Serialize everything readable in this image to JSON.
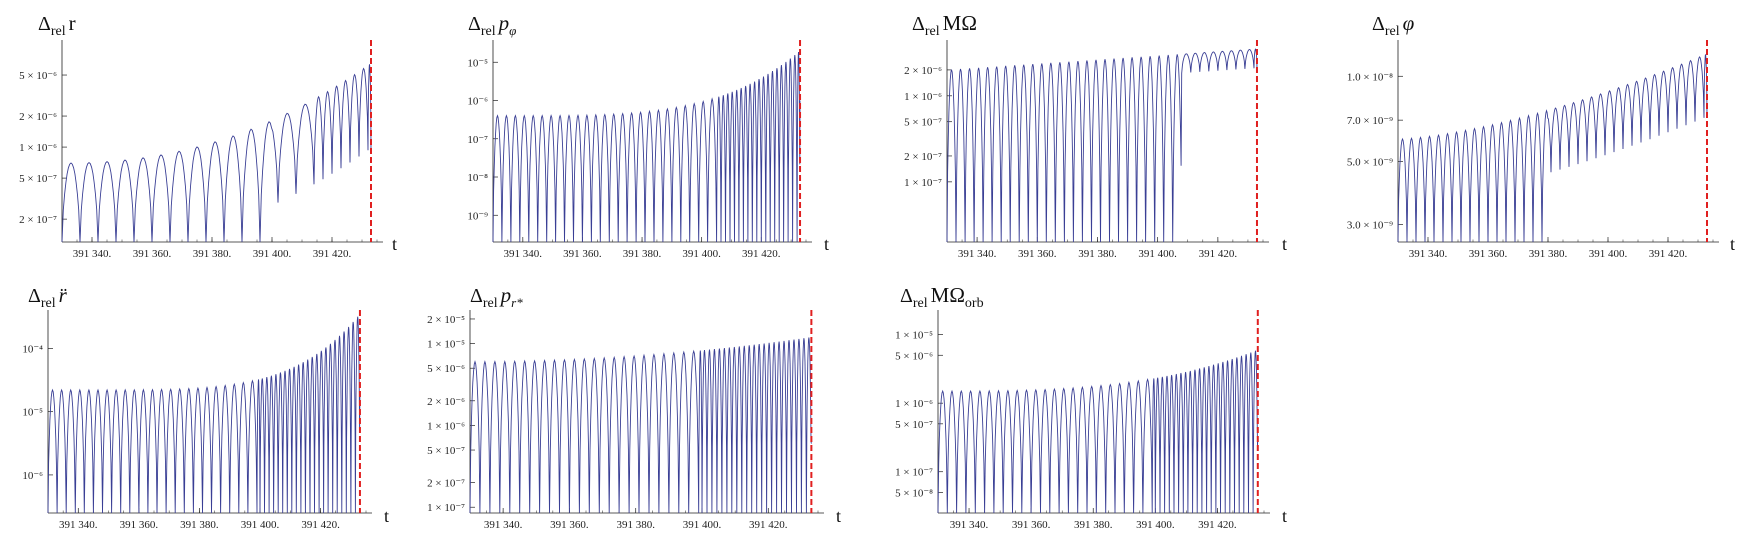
{
  "chart_data": [
    {
      "type": "line",
      "title": "Δrel r",
      "title_main": "Δ",
      "title_sub": "rel",
      "title_sym": "r",
      "title_sym_italic": false,
      "xlabel": "t",
      "ylabel": "",
      "yscale": "log",
      "xlim": [
        391330,
        391435
      ],
      "ylim": [
        1.2e-07,
        1e-05
      ],
      "xticks": [
        391340,
        391360,
        391380,
        391400,
        391420
      ],
      "xticklabels": [
        "391 340.",
        "391 360.",
        "391 380.",
        "391 400.",
        "391 420."
      ],
      "yticks": [
        2e-07,
        5e-07,
        1e-06,
        2e-06,
        5e-06
      ],
      "yticklabels": [
        "2 × 10⁻⁷",
        "5 × 10⁻⁷",
        "1 × 10⁻⁶",
        "2 × 10⁻⁶",
        "5 × 10⁻⁶"
      ],
      "series": [
        {
          "color": "#3a3f95",
          "form": "dips",
          "env_start": 7e-07,
          "env_end": 6.5e-06,
          "env_shape": 2.2,
          "floor": 1.2e-07,
          "periods": [
            [
              391330,
              391414,
              6.0
            ],
            [
              391414,
              391433,
              3.0
            ]
          ],
          "floor_end": 391400,
          "dip_depth_late": 0.15
        }
      ],
      "vline": {
        "x": 391433,
        "color": "#e02020",
        "style": "dashed"
      }
    },
    {
      "type": "line",
      "title": "Δrel pφ",
      "title_main": "Δ",
      "title_sub": "rel",
      "title_sym": "p",
      "title_sym_italic": true,
      "title_symsub": "φ",
      "xlabel": "t",
      "ylabel": "",
      "yscale": "log",
      "xlim": [
        391330,
        391435
      ],
      "ylim": [
        2e-10,
        3e-05
      ],
      "xticks": [
        391340,
        391360,
        391380,
        391400,
        391420
      ],
      "xticklabels": [
        "391 340.",
        "391 360.",
        "391 380.",
        "391 400.",
        "391 420."
      ],
      "yticks": [
        1e-09,
        1e-08,
        1e-07,
        1e-06,
        1e-05
      ],
      "yticklabels": [
        "10⁻⁹",
        "10⁻⁸",
        "10⁻⁷",
        "10⁻⁶",
        "10⁻⁵"
      ],
      "series": [
        {
          "color": "#3a3f95",
          "form": "dips",
          "env_start": 4e-07,
          "env_end": 2e-05,
          "env_shape": 4.0,
          "floor": 2e-10,
          "periods": [
            [
              391330,
              391405,
              3.0
            ],
            [
              391405,
              391433,
              1.5
            ]
          ],
          "floor_end": 391433,
          "dip_depth_late": 0.05
        }
      ],
      "vline": {
        "x": 391433,
        "color": "#e02020",
        "style": "dashed"
      }
    },
    {
      "type": "line",
      "title": "Δrel MΩ",
      "title_main": "Δ",
      "title_sub": "rel",
      "title_sym": "MΩ",
      "title_sym_italic": false,
      "xlabel": "t",
      "ylabel": "",
      "yscale": "log",
      "xlim": [
        391330,
        391435
      ],
      "ylim": [
        2e-08,
        4e-06
      ],
      "xticks": [
        391340,
        391360,
        391380,
        391400,
        391420
      ],
      "xticklabels": [
        "391 340.",
        "391 360.",
        "391 380.",
        "391 400.",
        "391 420."
      ],
      "yticks": [
        1e-07,
        2e-07,
        5e-07,
        1e-06,
        2e-06
      ],
      "yticklabels": [
        "1 × 10⁻⁷",
        "2 × 10⁻⁷",
        "5 × 10⁻⁷",
        "1 × 10⁻⁶",
        "2 × 10⁻⁶"
      ],
      "series": [
        {
          "color": "#3a3f95",
          "form": "dips",
          "env_start": 2e-06,
          "env_end": 3.5e-06,
          "env_shape": 1.0,
          "floor": 2e-08,
          "periods": [
            [
              391330,
              391433,
              3.0
            ]
          ],
          "floor_end": 391408,
          "dip_depth_late": 0.6
        }
      ],
      "vline": {
        "x": 391433,
        "color": "#e02020",
        "style": "dashed"
      }
    },
    {
      "type": "line",
      "title": "Δrel φ",
      "title_main": "Δ",
      "title_sub": "rel",
      "title_sym": "φ",
      "title_sym_italic": true,
      "xlabel": "t",
      "ylabel": "",
      "yscale": "log",
      "xlim": [
        391330,
        391435
      ],
      "ylim": [
        2.6e-09,
        1.3e-08
      ],
      "xticks": [
        391340,
        391360,
        391380,
        391400,
        391420
      ],
      "xticklabels": [
        "391 340.",
        "391 360.",
        "391 380.",
        "391 400.",
        "391 420."
      ],
      "yticks": [
        3e-09,
        5e-09,
        7e-09,
        1e-08
      ],
      "yticklabels": [
        "3.0 × 10⁻⁹",
        "5.0 × 10⁻⁹",
        "7.0 × 10⁻⁹",
        "1.0 × 10⁻⁸"
      ],
      "series": [
        {
          "color": "#3a3f95",
          "form": "dips",
          "env_start": 6e-09,
          "env_end": 1.2e-08,
          "env_shape": 1.5,
          "floor": 2.6e-09,
          "periods": [
            [
              391330,
              391433,
              3.0
            ]
          ],
          "floor_end": 391380,
          "dip_depth_late": 0.6
        }
      ],
      "vline": {
        "x": 391433,
        "color": "#e02020",
        "style": "dashed"
      }
    },
    {
      "type": "line",
      "title": "Δrel r̈",
      "title_main": "Δ",
      "title_sub": "rel",
      "title_sym": "r̈",
      "title_sym_italic": true,
      "xlabel": "t",
      "ylabel": "",
      "yscale": "log",
      "xlim": [
        391330,
        391435
      ],
      "ylim": [
        2.5e-07,
        0.00035
      ],
      "xticks": [
        391340,
        391360,
        391380,
        391400,
        391420
      ],
      "xticklabels": [
        "391 340.",
        "391 360.",
        "391 380.",
        "391 400.",
        "391 420."
      ],
      "yticks": [
        1e-06,
        1e-05,
        0.0001
      ],
      "yticklabels": [
        "10⁻⁶",
        "10⁻⁵",
        "10⁻⁴"
      ],
      "series": [
        {
          "color": "#3a3f95",
          "form": "dips",
          "env_start": 2.2e-05,
          "env_end": 0.00035,
          "env_shape": 5.0,
          "floor": 2.5e-07,
          "periods": [
            [
              391330,
              391400,
              3.0
            ],
            [
              391400,
              391433,
              1.5
            ]
          ],
          "floor_end": 391433,
          "dip_depth_late": 0.05
        }
      ],
      "vline": {
        "x": 391433,
        "color": "#e02020",
        "style": "dashed"
      }
    },
    {
      "type": "line",
      "title": "Δrel pr*",
      "title_main": "Δ",
      "title_sub": "rel",
      "title_sym": "p",
      "title_sym_italic": true,
      "title_symsub": "r*",
      "xlabel": "t",
      "ylabel": "",
      "yscale": "log",
      "xlim": [
        391330,
        391435
      ],
      "ylim": [
        8.5e-08,
        2.3e-05
      ],
      "xticks": [
        391340,
        391360,
        391380,
        391400,
        391420
      ],
      "xticklabels": [
        "391 340.",
        "391 360.",
        "391 380.",
        "391 400.",
        "391 420."
      ],
      "yticks": [
        1e-07,
        2e-07,
        5e-07,
        1e-06,
        2e-06,
        5e-06,
        1e-05,
        2e-05
      ],
      "yticklabels": [
        "1 × 10⁻⁷",
        "2 × 10⁻⁷",
        "5 × 10⁻⁷",
        "1 × 10⁻⁶",
        "2 × 10⁻⁶",
        "5 × 10⁻⁶",
        "1 × 10⁻⁵",
        "2 × 10⁻⁵"
      ],
      "series": [
        {
          "color": "#3a3f95",
          "form": "dips",
          "env_start": 6e-06,
          "env_end": 1.2e-05,
          "env_shape": 2.0,
          "floor": 8.5e-08,
          "periods": [
            [
              391330,
              391400,
              3.0
            ],
            [
              391400,
              391433,
              1.5
            ]
          ],
          "floor_end": 391433,
          "dip_depth_late": 0.05
        }
      ],
      "vline": {
        "x": 391433,
        "color": "#e02020",
        "style": "dashed"
      }
    },
    {
      "type": "line",
      "title": "Δrel MΩorb",
      "title_main": "Δ",
      "title_sub": "rel",
      "title_sym": "MΩ",
      "title_sym_italic": false,
      "title_symsub2": "orb",
      "xlabel": "t",
      "ylabel": "",
      "yscale": "log",
      "xlim": [
        391330,
        391435
      ],
      "ylim": [
        2.5e-08,
        2e-05
      ],
      "xticks": [
        391340,
        391360,
        391380,
        391400,
        391420
      ],
      "xticklabels": [
        "391 340.",
        "391 360.",
        "391 380.",
        "391 400.",
        "391 420."
      ],
      "yticks": [
        5e-08,
        1e-07,
        5e-07,
        1e-06,
        5e-06,
        1e-05
      ],
      "yticklabels": [
        "5 × 10⁻⁸",
        "1 × 10⁻⁷",
        "5 × 10⁻⁷",
        "1 × 10⁻⁶",
        "5 × 10⁻⁶",
        "1 × 10⁻⁵"
      ],
      "series": [
        {
          "color": "#3a3f95",
          "form": "dips",
          "env_start": 1.5e-06,
          "env_end": 6e-06,
          "env_shape": 3.0,
          "floor": 2.5e-08,
          "periods": [
            [
              391330,
              391400,
              3.0
            ],
            [
              391400,
              391433,
              1.5
            ]
          ],
          "floor_end": 391433,
          "dip_depth_late": 0.05
        }
      ],
      "vline": {
        "x": 391433,
        "color": "#e02020",
        "style": "dashed"
      }
    }
  ]
}
